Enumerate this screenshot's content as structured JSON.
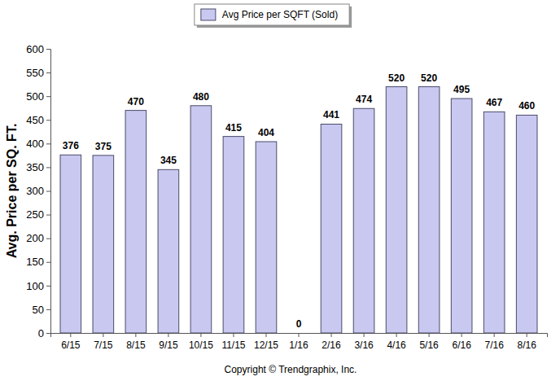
{
  "chart_data": {
    "type": "bar",
    "y_label": "Avg. Price per SQ. FT.",
    "categories": [
      "6/15",
      "7/15",
      "8/15",
      "9/15",
      "10/15",
      "11/15",
      "12/15",
      "1/16",
      "2/16",
      "3/16",
      "4/16",
      "5/16",
      "6/16",
      "7/16",
      "8/16"
    ],
    "series": [
      {
        "name": "Avg Price per SQFT (Sold)",
        "color": "#c8c8f0",
        "values": [
          376,
          375,
          470,
          345,
          480,
          415,
          404,
          0,
          441,
          474,
          520,
          520,
          495,
          467,
          460
        ]
      }
    ],
    "ylim": [
      0,
      600
    ],
    "yticks": [
      0,
      50,
      100,
      150,
      200,
      250,
      300,
      350,
      400,
      450,
      500,
      550,
      600
    ],
    "grid": false,
    "legend": "top",
    "data_labels": true,
    "annotations": [
      "Copyright © Trendgraphix, Inc."
    ]
  }
}
